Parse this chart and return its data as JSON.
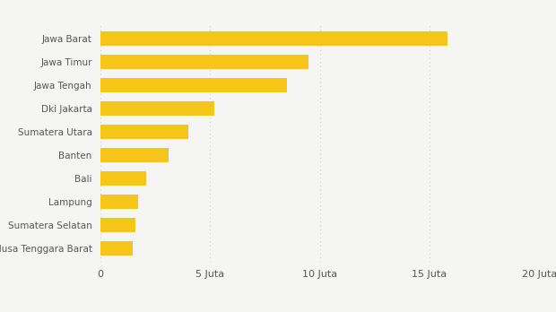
{
  "categories": [
    "Nusa Tenggara Barat",
    "Sumatera Selatan",
    "Lampung",
    "Bali",
    "Banten",
    "Sumatera Utara",
    "Dki Jakarta",
    "Jawa Tengah",
    "Jawa Timur",
    "Jawa Barat"
  ],
  "values": [
    1.5,
    1.6,
    1.75,
    2.1,
    3.1,
    4.0,
    5.2,
    8.5,
    9.5,
    15.8
  ],
  "bar_color": "#F5C518",
  "background_color": "#F5F5F3",
  "xlim": [
    0,
    20
  ],
  "xticks": [
    0,
    5,
    10,
    15,
    20
  ],
  "xtick_labels": [
    "0",
    "5 Juta",
    "10 Juta",
    "15 Juta",
    "20 Juta"
  ],
  "bar_height": 0.62,
  "ylabel_fontsize": 7.5,
  "xlabel_fontsize": 8,
  "grid_color": "#CCCCCC",
  "text_color": "#555555"
}
